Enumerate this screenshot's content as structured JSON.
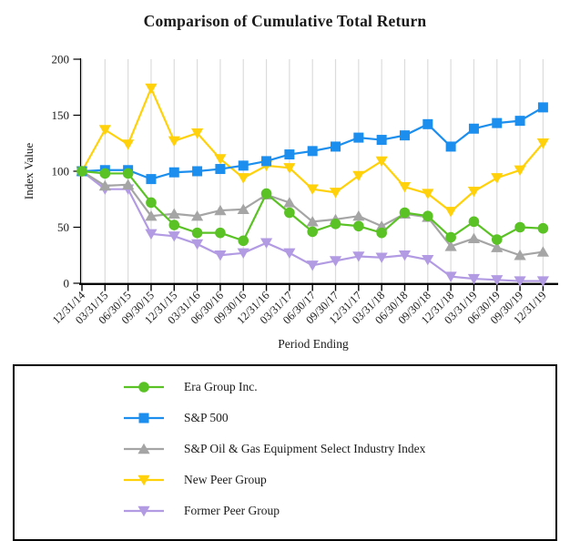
{
  "chart_data": {
    "type": "line",
    "title": "Comparison of Cumulative Total Return",
    "xlabel": "Period Ending",
    "ylabel": "Index Value",
    "ylim": [
      0,
      200
    ],
    "yticks": [
      0,
      50,
      100,
      150,
      200
    ],
    "grid": "vertical-only",
    "grid_color": "#DCDCDC",
    "axis_color": "#000000",
    "legend_position": "bottom-boxed",
    "categories": [
      "12/31/14",
      "03/31/15",
      "06/30/15",
      "09/30/15",
      "12/31/15",
      "03/31/16",
      "06/30/16",
      "09/30/16",
      "12/31/16",
      "03/31/17",
      "06/30/17",
      "09/30/17",
      "12/31/17",
      "03/31/18",
      "06/30/18",
      "09/30/18",
      "12/31/18",
      "03/31/19",
      "06/30/19",
      "09/30/19",
      "12/31/19"
    ],
    "series": [
      {
        "name": "Era Group Inc.",
        "marker": "circle",
        "color": "#5BC226",
        "values": [
          100,
          98,
          98,
          72,
          52,
          45,
          45,
          38,
          80,
          63,
          46,
          53,
          51,
          45,
          63,
          60,
          41,
          55,
          39,
          50,
          49
        ]
      },
      {
        "name": "S&P 500",
        "marker": "square",
        "color": "#1C8EEE",
        "values": [
          100,
          101,
          101,
          93,
          99,
          100,
          102,
          105,
          109,
          115,
          118,
          122,
          130,
          128,
          132,
          142,
          122,
          138,
          143,
          145,
          157
        ]
      },
      {
        "name": "S&P Oil & Gas Equipment Select Industry Index",
        "marker": "triangle-up",
        "color": "#A5A5A5",
        "values": [
          100,
          87,
          88,
          60,
          62,
          60,
          65,
          66,
          79,
          72,
          55,
          57,
          60,
          51,
          62,
          59,
          33,
          40,
          32,
          25,
          28
        ]
      },
      {
        "name": "New Peer Group",
        "marker": "triangle-down",
        "color": "#FFD10A",
        "values": [
          100,
          137,
          124,
          174,
          127,
          134,
          111,
          94,
          105,
          103,
          84,
          81,
          96,
          109,
          86,
          80,
          64,
          82,
          94,
          101,
          125
        ]
      },
      {
        "name": "Former Peer Group",
        "marker": "triangle-down",
        "color": "#B29BE3",
        "values": [
          100,
          84,
          84,
          44,
          42,
          35,
          25,
          27,
          36,
          27,
          16,
          20,
          24,
          23,
          25,
          21,
          6,
          4,
          3,
          2,
          2
        ]
      }
    ],
    "draw_order": [
      4,
      3,
      2,
      1,
      0
    ]
  }
}
